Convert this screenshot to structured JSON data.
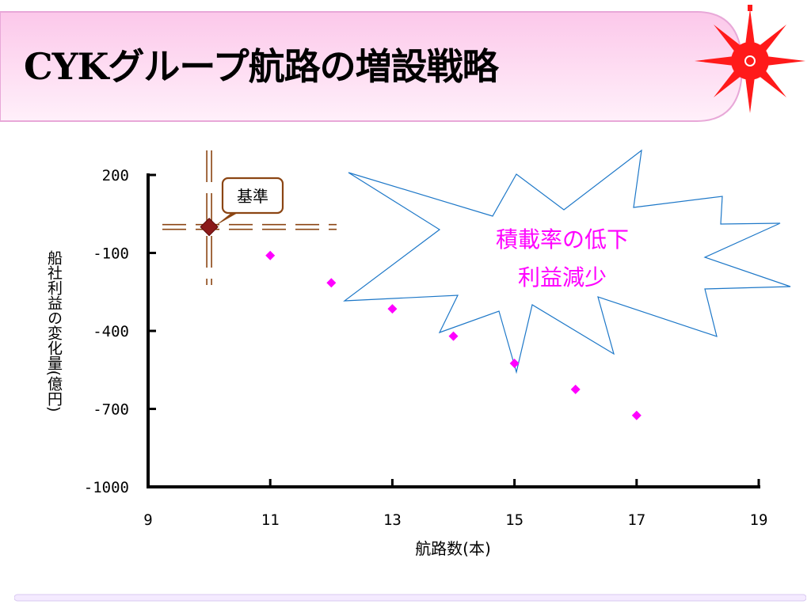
{
  "slide": {
    "title": "CYKグループ航路の増設戦略",
    "accent_colors": {
      "banner": "#fdd8f0",
      "banner_border": "#e8a8d8",
      "logo": "#ff1a1a",
      "points": "#ff00ff",
      "base_point": "#8b1a1a",
      "callout_text": "#ff00ff",
      "burst_stroke": "#1e78c8"
    }
  },
  "logo": {
    "icon": "red-compass-star-icon"
  },
  "chart_data": {
    "type": "scatter",
    "xlabel": "航路数(本)",
    "ylabel": "船社利益の変化量(億円)",
    "xlim": [
      9,
      19
    ],
    "ylim": [
      -1000,
      200
    ],
    "x_ticks": [
      "9",
      "11",
      "13",
      "15",
      "17",
      "19"
    ],
    "y_ticks": [
      "200",
      "-100",
      "-400",
      "-700",
      "-1000"
    ],
    "grid": false,
    "base_point": {
      "x": 10,
      "y": 0
    },
    "points": [
      {
        "x": 11,
        "y": -110
      },
      {
        "x": 12,
        "y": -215
      },
      {
        "x": 13,
        "y": -315
      },
      {
        "x": 14,
        "y": -420
      },
      {
        "x": 15,
        "y": -525
      },
      {
        "x": 16,
        "y": -625
      },
      {
        "x": 17,
        "y": -725
      }
    ],
    "annotations": {
      "base_label": "基準",
      "burst_line1": "積載率の低下",
      "burst_line2": "利益減少"
    }
  }
}
